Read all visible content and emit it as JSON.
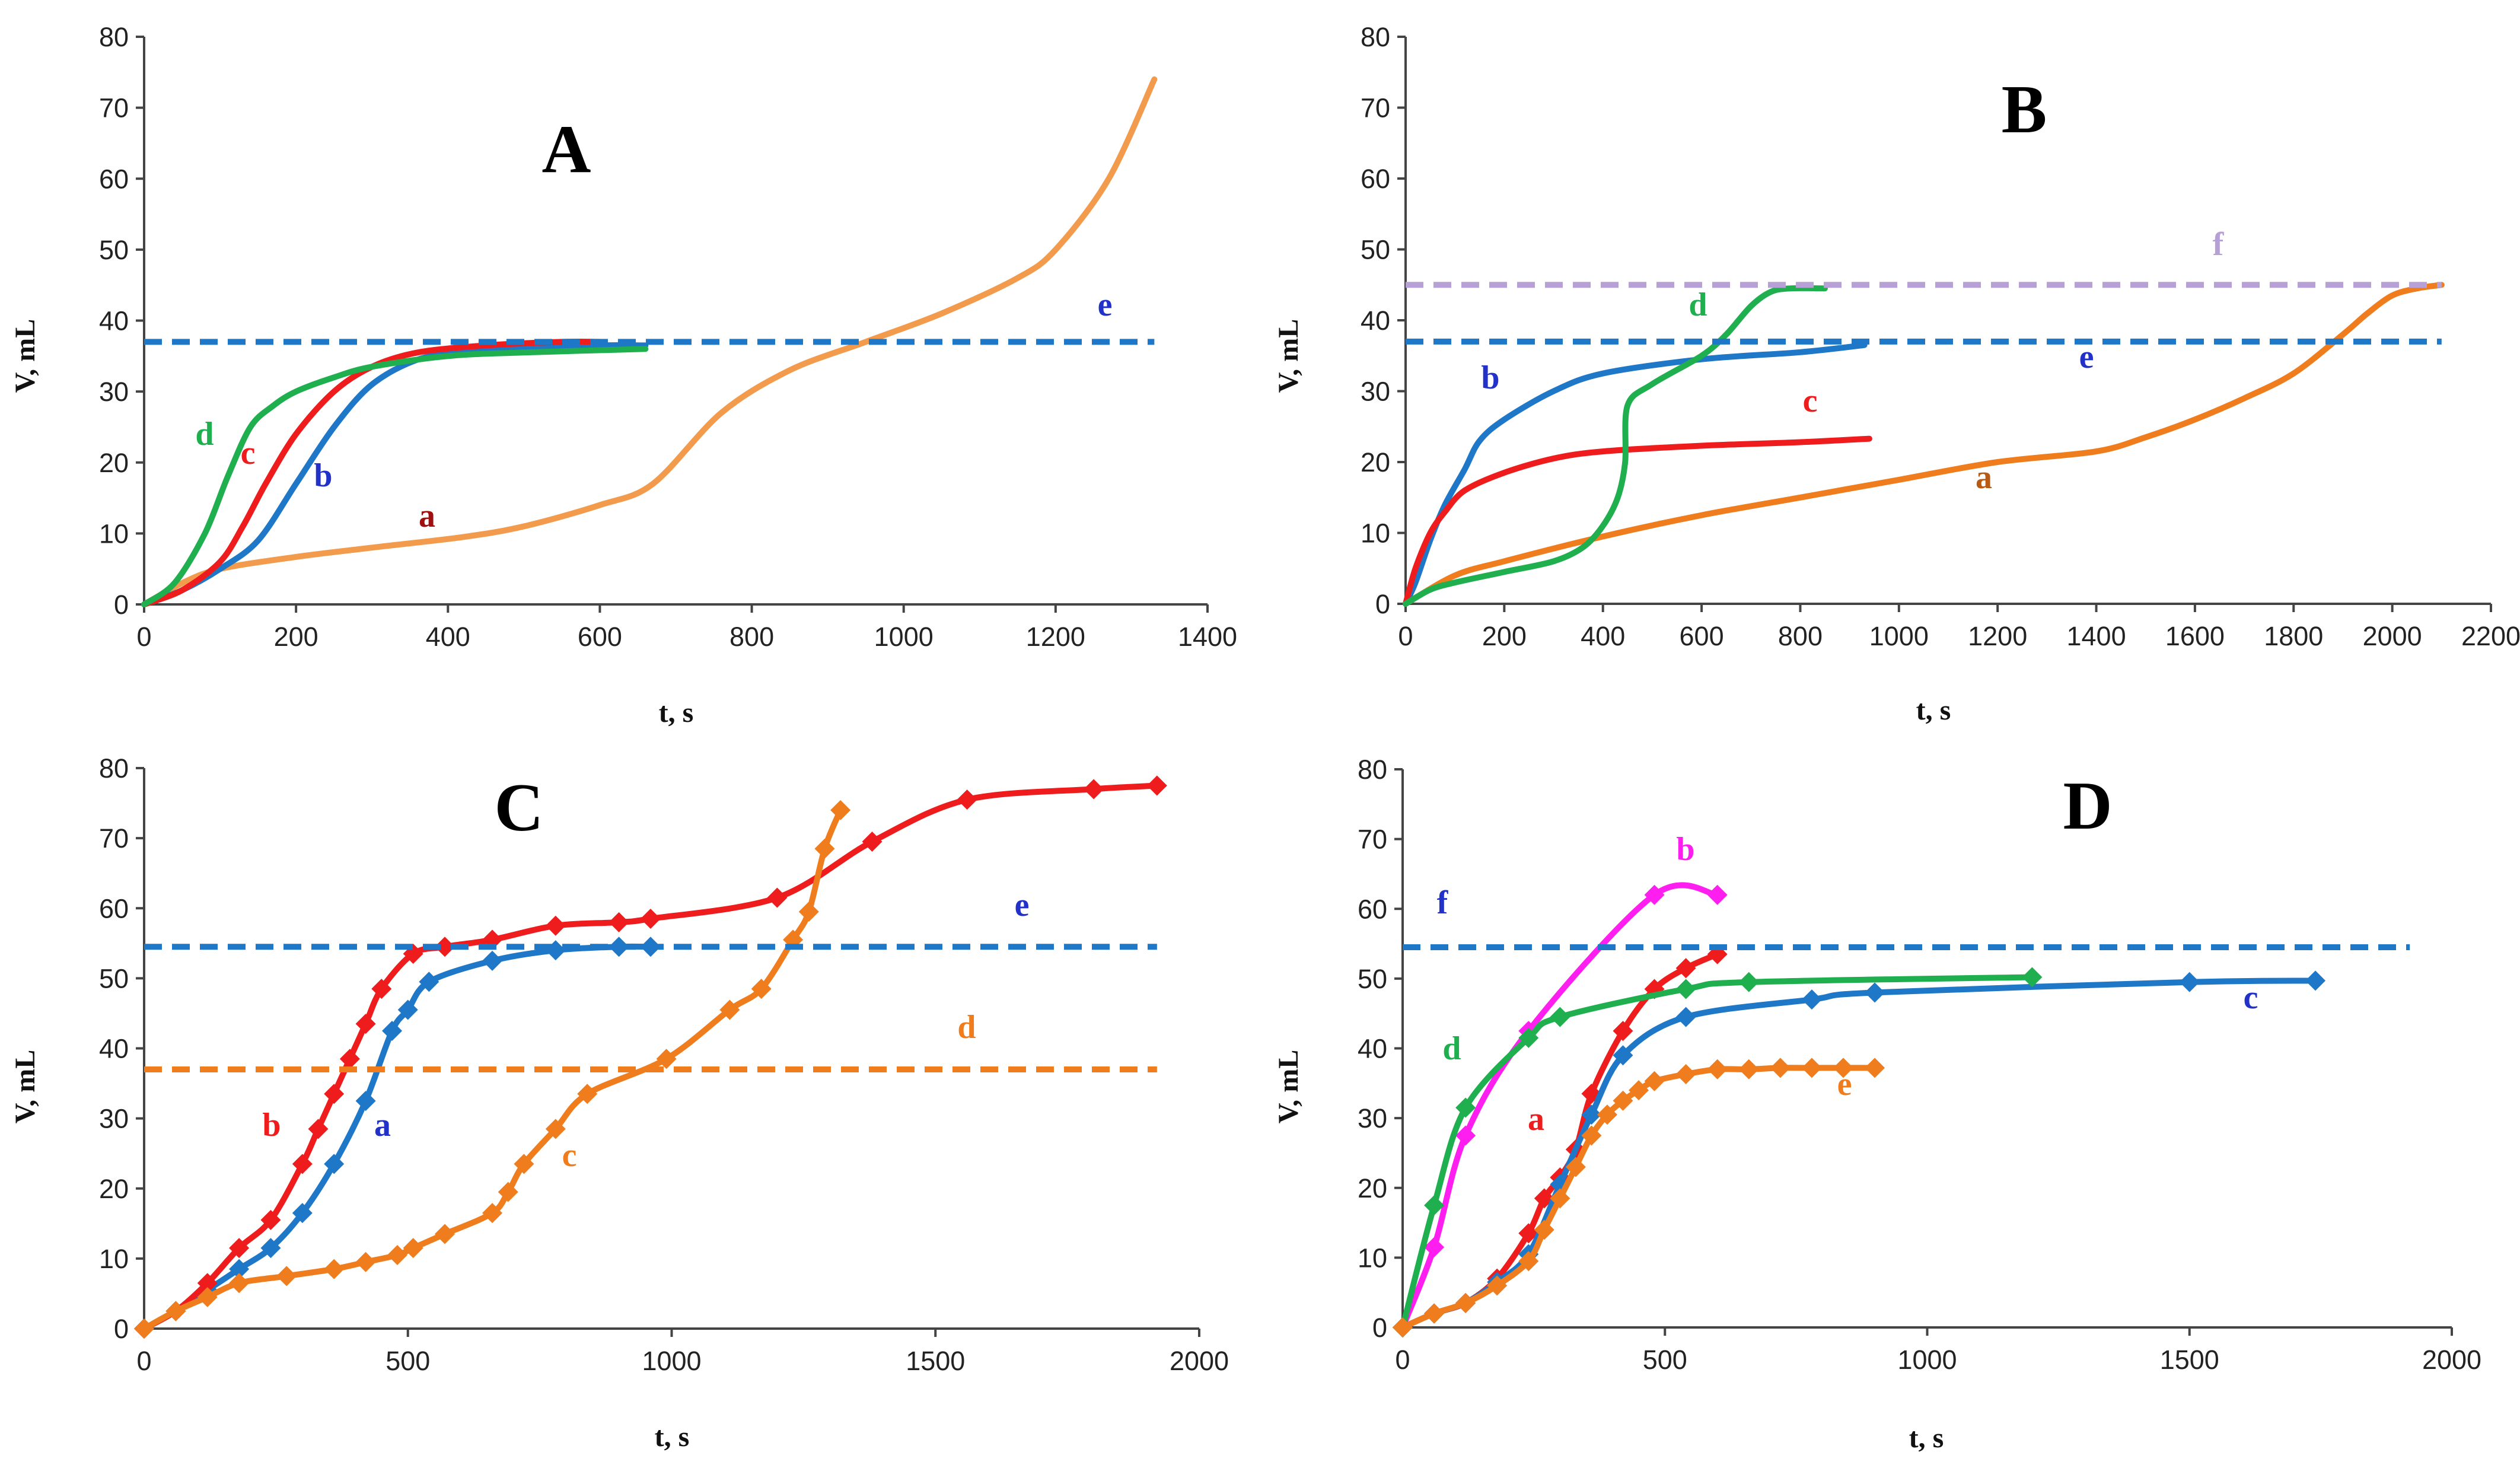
{
  "figure": {
    "x_label": "t, s",
    "y_label": "V, mL"
  },
  "colors": {
    "red": "#ee1c1c",
    "blue": "#1f77c8",
    "green": "#1faf4f",
    "orange": "#ef7d1e",
    "light_orange": "#f39b4d",
    "brown": "#b65a14",
    "magenta": "#ff1ef0",
    "lilac": "#b7a0d6",
    "dark_red": "#a01010",
    "label_blue": "#2232c8"
  },
  "chart_data": [
    {
      "title": "A",
      "type": "line",
      "xlim": [
        0,
        1400
      ],
      "ylim": [
        0,
        80
      ],
      "x_ticks": [
        0,
        200,
        400,
        600,
        800,
        1000,
        1200,
        1400
      ],
      "y_ticks": [
        0,
        10,
        20,
        30,
        40,
        50,
        60,
        70,
        80
      ],
      "series": [
        {
          "name": "a",
          "color": "light_orange",
          "label_color": "dark_red",
          "dashed": false,
          "markers": false,
          "x": [
            0,
            50,
            100,
            200,
            300,
            420,
            500,
            600,
            670,
            760,
            850,
            950,
            1050,
            1150,
            1200,
            1270,
            1330
          ],
          "y": [
            0,
            3,
            5,
            6.7,
            8,
            9.5,
            11,
            14,
            17,
            27,
            33,
            37,
            41,
            46,
            50,
            60,
            74
          ]
        },
        {
          "name": "b",
          "color": "blue",
          "label_color": "label_blue",
          "dashed": false,
          "markers": false,
          "x": [
            0,
            50,
            100,
            150,
            200,
            250,
            300,
            360,
            420,
            500,
            600,
            660
          ],
          "y": [
            0,
            2,
            5,
            9,
            17,
            25,
            31,
            34.5,
            35.5,
            36,
            36.5,
            36.5
          ]
        },
        {
          "name": "c",
          "color": "red",
          "label_color": "red",
          "dashed": false,
          "markers": false,
          "x": [
            0,
            50,
            100,
            130,
            160,
            200,
            250,
            300,
            360,
            450,
            550,
            600
          ],
          "y": [
            0,
            2,
            6,
            11,
            17,
            24,
            30,
            33.5,
            35.5,
            36.5,
            37,
            37
          ]
        },
        {
          "name": "d",
          "color": "green",
          "label_color": "green",
          "dashed": false,
          "markers": false,
          "x": [
            0,
            40,
            80,
            110,
            140,
            170,
            200,
            250,
            300,
            400,
            500,
            660
          ],
          "y": [
            0,
            3,
            10,
            18,
            25,
            28,
            30,
            32,
            33.5,
            35,
            35.5,
            36
          ]
        },
        {
          "name": "e",
          "color": "blue",
          "label_color": "label_blue",
          "dashed": true,
          "markers": false,
          "x": [
            0,
            1330
          ],
          "y": [
            37,
            37
          ]
        }
      ]
    },
    {
      "title": "B",
      "type": "line",
      "xlim": [
        0,
        2200
      ],
      "ylim": [
        0,
        80
      ],
      "x_ticks": [
        0,
        200,
        400,
        600,
        800,
        1000,
        1200,
        1400,
        1600,
        1800,
        2000,
        2200
      ],
      "y_ticks": [
        0,
        10,
        20,
        30,
        40,
        50,
        60,
        70,
        80
      ],
      "series": [
        {
          "name": "a",
          "color": "orange",
          "label_color": "brown",
          "dashed": false,
          "markers": false,
          "x": [
            0,
            100,
            200,
            400,
            600,
            800,
            1000,
            1200,
            1400,
            1500,
            1600,
            1700,
            1800,
            1900,
            1950,
            2000,
            2050,
            2100
          ],
          "y": [
            0,
            4,
            6,
            9.5,
            12.5,
            15,
            17.5,
            20,
            21.5,
            23.5,
            26,
            29,
            32.5,
            38,
            41,
            43.5,
            44.5,
            45
          ]
        },
        {
          "name": "b",
          "color": "blue",
          "label_color": "label_blue",
          "dashed": false,
          "markers": false,
          "x": [
            0,
            20,
            50,
            80,
            120,
            150,
            200,
            300,
            400,
            600,
            800,
            930
          ],
          "y": [
            0,
            3,
            9,
            14,
            19,
            23,
            26,
            30,
            32.5,
            34.5,
            35.5,
            36.5
          ]
        },
        {
          "name": "c",
          "color": "red",
          "label_color": "red",
          "dashed": false,
          "markers": false,
          "x": [
            0,
            20,
            50,
            80,
            120,
            200,
            300,
            400,
            600,
            800,
            940
          ],
          "y": [
            0,
            5,
            10,
            13,
            16,
            18.5,
            20.5,
            21.5,
            22.3,
            22.8,
            23.3
          ]
        },
        {
          "name": "d",
          "color": "green",
          "label_color": "green",
          "dashed": false,
          "markers": false,
          "x": [
            0,
            50,
            100,
            200,
            300,
            360,
            400,
            430,
            445,
            450,
            500,
            600,
            650,
            700,
            740,
            780,
            850
          ],
          "y": [
            0,
            2,
            3,
            4.5,
            6,
            8,
            11,
            15,
            20,
            28,
            31,
            35,
            38,
            42,
            44,
            44.5,
            44.5
          ]
        },
        {
          "name": "e",
          "color": "blue",
          "label_color": "label_blue",
          "dashed": true,
          "markers": false,
          "x": [
            0,
            2100
          ],
          "y": [
            37,
            37
          ]
        },
        {
          "name": "f",
          "color": "lilac",
          "label_color": "lilac",
          "dashed": true,
          "markers": false,
          "x": [
            0,
            2100
          ],
          "y": [
            45,
            45
          ]
        }
      ]
    },
    {
      "title": "C",
      "type": "line",
      "xlim": [
        0,
        2000
      ],
      "ylim": [
        0,
        80
      ],
      "x_ticks": [
        0,
        500,
        1000,
        1500,
        2000
      ],
      "y_ticks": [
        0,
        10,
        20,
        30,
        40,
        50,
        60,
        70,
        80
      ],
      "series": [
        {
          "name": "a",
          "color": "blue",
          "label_color": "label_blue",
          "dashed": false,
          "markers": true,
          "x": [
            0,
            60,
            120,
            180,
            240,
            300,
            360,
            420,
            470,
            500,
            540,
            660,
            780,
            900,
            960
          ],
          "y": [
            0,
            2.5,
            5.5,
            8.5,
            11.5,
            16.5,
            23.5,
            32.5,
            42.5,
            45.5,
            49.5,
            52.5,
            54,
            54.5,
            54.5
          ]
        },
        {
          "name": "b",
          "color": "red",
          "label_color": "red",
          "dashed": false,
          "markers": true,
          "x": [
            0,
            60,
            120,
            180,
            240,
            300,
            330,
            360,
            390,
            420,
            450,
            510,
            570,
            660,
            780,
            900,
            960,
            1200,
            1380,
            1560,
            1800,
            1920
          ],
          "y": [
            0,
            2.5,
            6.5,
            11.5,
            15.5,
            23.5,
            28.5,
            33.5,
            38.5,
            43.5,
            48.5,
            53.5,
            54.5,
            55.5,
            57.5,
            58,
            58.5,
            61.5,
            69.5,
            75.5,
            77,
            77.5
          ]
        },
        {
          "name": "c",
          "color": "orange",
          "label_color": "orange",
          "dashed": false,
          "markers": true,
          "x": [
            0,
            60,
            120,
            180,
            270,
            360,
            420,
            480,
            510,
            570,
            660,
            690,
            720,
            780,
            840,
            990,
            1110,
            1170,
            1230,
            1260,
            1290,
            1320
          ],
          "y": [
            0,
            2.5,
            4.5,
            6.5,
            7.5,
            8.5,
            9.5,
            10.5,
            11.5,
            13.5,
            16.5,
            19.5,
            23.5,
            28.5,
            33.5,
            38.5,
            45.5,
            48.5,
            55.5,
            59.5,
            68.5,
            74
          ]
        },
        {
          "name": "d",
          "color": "orange",
          "label_color": "orange",
          "dashed": true,
          "markers": false,
          "x": [
            0,
            1920
          ],
          "y": [
            37,
            37
          ]
        },
        {
          "name": "e",
          "color": "blue",
          "label_color": "label_blue",
          "dashed": true,
          "markers": false,
          "x": [
            0,
            1920
          ],
          "y": [
            54.5,
            54.5
          ]
        }
      ]
    },
    {
      "title": "D",
      "type": "line",
      "xlim": [
        0,
        2000
      ],
      "ylim": [
        0,
        80
      ],
      "x_ticks": [
        0,
        500,
        1000,
        1500,
        2000
      ],
      "y_ticks": [
        0,
        10,
        20,
        30,
        40,
        50,
        60,
        70,
        80
      ],
      "series": [
        {
          "name": "a",
          "color": "red",
          "label_color": "red",
          "dashed": false,
          "markers": true,
          "x": [
            0,
            60,
            120,
            180,
            240,
            270,
            300,
            330,
            360,
            420,
            480,
            540,
            600
          ],
          "y": [
            0,
            2,
            3.5,
            7,
            13.5,
            18.5,
            21.5,
            25.5,
            33.5,
            42.5,
            48.5,
            51.5,
            53.5
          ]
        },
        {
          "name": "b",
          "color": "magenta",
          "label_color": "magenta",
          "dashed": false,
          "markers": true,
          "x": [
            0,
            60,
            120,
            240,
            480,
            600
          ],
          "y": [
            0,
            11.5,
            27.5,
            42.5,
            62,
            62
          ]
        },
        {
          "name": "c",
          "color": "blue",
          "label_color": "label_blue",
          "dashed": false,
          "markers": true,
          "x": [
            0,
            60,
            120,
            180,
            240,
            300,
            360,
            420,
            540,
            780,
            900,
            1500,
            1740
          ],
          "y": [
            0,
            2,
            3.5,
            6.5,
            10.5,
            20.5,
            30.5,
            39,
            44.5,
            47,
            48,
            49.5,
            49.7
          ]
        },
        {
          "name": "d",
          "color": "green",
          "label_color": "green",
          "dashed": false,
          "markers": true,
          "x": [
            0,
            60,
            120,
            240,
            300,
            540,
            660,
            1200
          ],
          "y": [
            0,
            17.5,
            31.5,
            41.5,
            44.5,
            48.5,
            49.5,
            50.2
          ]
        },
        {
          "name": "e",
          "color": "orange",
          "label_color": "orange",
          "dashed": false,
          "markers": true,
          "x": [
            0,
            60,
            120,
            180,
            240,
            270,
            300,
            330,
            360,
            390,
            420,
            450,
            480,
            540,
            600,
            660,
            720,
            780,
            840,
            900
          ],
          "y": [
            0,
            2,
            3.5,
            6,
            9.5,
            14,
            18.5,
            23,
            27.5,
            30.5,
            32.5,
            34,
            35.3,
            36.3,
            37,
            37,
            37.2,
            37.2,
            37.2,
            37.2
          ]
        },
        {
          "name": "f",
          "color": "blue",
          "label_color": "label_blue",
          "dashed": true,
          "markers": false,
          "x": [
            0,
            1920
          ],
          "y": [
            54.5,
            54.5
          ]
        }
      ]
    }
  ]
}
